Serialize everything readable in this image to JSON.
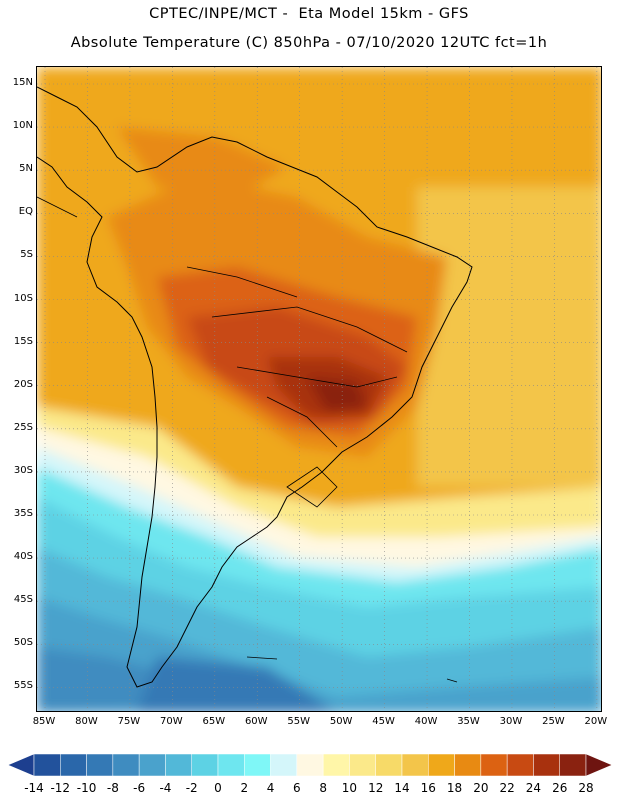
{
  "header": {
    "line1": "CPTEC/INPE/MCT -  Eta Model 15km - GFS",
    "line2": "Absolute Temperature (C) 850hPa - 07/10/2020 12UTC fct=1h"
  },
  "map": {
    "lat_labels": [
      "15N",
      "10N",
      "5N",
      "EQ",
      "5S",
      "10S",
      "15S",
      "20S",
      "25S",
      "30S",
      "35S",
      "40S",
      "45S",
      "50S",
      "55S"
    ],
    "lon_labels": [
      "85W",
      "80W",
      "75W",
      "70W",
      "65W",
      "60W",
      "55W",
      "50W",
      "45W",
      "40W",
      "35W",
      "30W",
      "25W",
      "20W"
    ]
  },
  "colorbar": {
    "labels": [
      "-14",
      "-12",
      "-10",
      "-8",
      "-6",
      "-4",
      "-2",
      "0",
      "2",
      "4",
      "6",
      "8",
      "10",
      "12",
      "14",
      "16",
      "18",
      "20",
      "22",
      "24",
      "26",
      "28"
    ],
    "colors": [
      "#1d3f8f",
      "#22529c",
      "#2a67aa",
      "#3479b5",
      "#3f8cc0",
      "#4aa2cc",
      "#52b8d8",
      "#5dd2e4",
      "#6ee6ef",
      "#7ff7f7",
      "#d4f6fa",
      "#fff8e2",
      "#fff6a8",
      "#fbe98a",
      "#f7da68",
      "#f3c54a",
      "#efa81a",
      "#e88a12",
      "#dc6212",
      "#c84a12",
      "#a8310e",
      "#8a2210",
      "#6e1410"
    ]
  },
  "colors": {
    "land_border": "#000000",
    "grid": "#888888"
  }
}
